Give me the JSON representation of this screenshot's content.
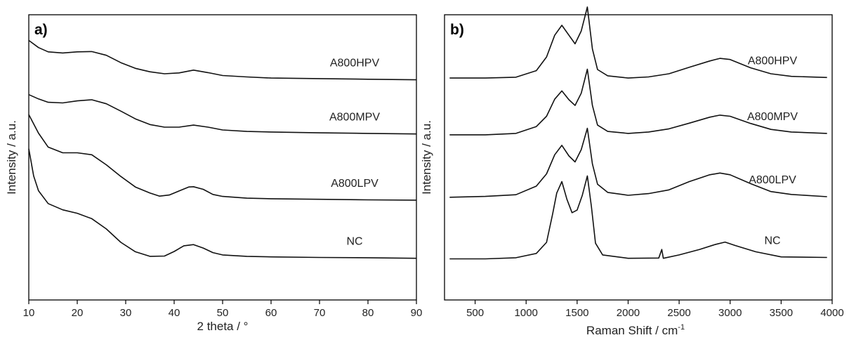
{
  "chart_data": [
    {
      "panel_label": "a)",
      "type": "line",
      "xlabel": "2 theta / °",
      "ylabel": "Intensity / a.u.",
      "xlim": [
        10,
        90
      ],
      "ylim": [
        0,
        100
      ],
      "xticks": [
        10,
        20,
        30,
        40,
        50,
        60,
        70,
        80,
        90
      ],
      "y_ticks_shown": false,
      "series": [
        {
          "name": "A800HPV",
          "points": [
            [
              10,
              91
            ],
            [
              12,
              88.5
            ],
            [
              14,
              87
            ],
            [
              17,
              86.6
            ],
            [
              20,
              87
            ],
            [
              23,
              87.1
            ],
            [
              26,
              85.8
            ],
            [
              29,
              83.2
            ],
            [
              32,
              81.2
            ],
            [
              35,
              80
            ],
            [
              38,
              79.3
            ],
            [
              41,
              79.6
            ],
            [
              44,
              80.6
            ],
            [
              47,
              79.7
            ],
            [
              50,
              78.7
            ],
            [
              55,
              78.2
            ],
            [
              60,
              77.8
            ],
            [
              70,
              77.6
            ],
            [
              80,
              77.4
            ],
            [
              90,
              77.2
            ]
          ]
        },
        {
          "name": "A800MPV",
          "points": [
            [
              10,
              72
            ],
            [
              12,
              70.5
            ],
            [
              14,
              69.3
            ],
            [
              17,
              69.1
            ],
            [
              20,
              69.8
            ],
            [
              23,
              70.2
            ],
            [
              26,
              68.8
            ],
            [
              29,
              66.2
            ],
            [
              32,
              63.5
            ],
            [
              35,
              61.5
            ],
            [
              38,
              60.6
            ],
            [
              41,
              60.6
            ],
            [
              44,
              61.3
            ],
            [
              47,
              60.6
            ],
            [
              50,
              59.6
            ],
            [
              55,
              59.1
            ],
            [
              60,
              58.9
            ],
            [
              70,
              58.6
            ],
            [
              80,
              58.4
            ],
            [
              90,
              58.2
            ]
          ]
        },
        {
          "name": "A800LPV",
          "points": [
            [
              10,
              65
            ],
            [
              12,
              58.5
            ],
            [
              14,
              53.6
            ],
            [
              17,
              51.6
            ],
            [
              20,
              51.6
            ],
            [
              23,
              50.9
            ],
            [
              26,
              47.4
            ],
            [
              29,
              43.3
            ],
            [
              32,
              39.6
            ],
            [
              35,
              37.5
            ],
            [
              37,
              36.4
            ],
            [
              39,
              36.8
            ],
            [
              41,
              38.2
            ],
            [
              43,
              39.6
            ],
            [
              44,
              39.7
            ],
            [
              46,
              38.8
            ],
            [
              48,
              37
            ],
            [
              50,
              36.3
            ],
            [
              55,
              35.7
            ],
            [
              60,
              35.5
            ],
            [
              70,
              35.3
            ],
            [
              80,
              35.1
            ],
            [
              90,
              35
            ]
          ]
        },
        {
          "name": "NC",
          "points": [
            [
              10,
              53
            ],
            [
              11,
              43.5
            ],
            [
              12,
              38.3
            ],
            [
              14,
              33.8
            ],
            [
              17,
              31.6
            ],
            [
              20,
              30.4
            ],
            [
              23,
              28.5
            ],
            [
              26,
              24.9
            ],
            [
              29,
              20.2
            ],
            [
              32,
              16.9
            ],
            [
              35,
              15.3
            ],
            [
              38,
              15.4
            ],
            [
              40,
              17
            ],
            [
              42,
              19
            ],
            [
              44,
              19.4
            ],
            [
              46,
              18.2
            ],
            [
              48,
              16.6
            ],
            [
              50,
              15.8
            ],
            [
              55,
              15.3
            ],
            [
              60,
              15.1
            ],
            [
              70,
              14.9
            ],
            [
              80,
              14.8
            ],
            [
              90,
              14.6
            ]
          ]
        }
      ]
    },
    {
      "panel_label": "b)",
      "type": "line",
      "xlabel": "Raman Shift / cm",
      "xlabel_sup": "-1",
      "ylabel": "Intensity / a.u.",
      "xlim": [
        200,
        4000
      ],
      "ylim": [
        0,
        100
      ],
      "xticks": [
        500,
        1000,
        1500,
        2000,
        2500,
        3000,
        3500,
        4000
      ],
      "y_ticks_shown": false,
      "series": [
        {
          "name": "A800HPV",
          "points": [
            [
              250,
              77.8
            ],
            [
              600,
              77.8
            ],
            [
              900,
              78.1
            ],
            [
              1100,
              80.4
            ],
            [
              1200,
              85.2
            ],
            [
              1280,
              92.8
            ],
            [
              1350,
              96.3
            ],
            [
              1420,
              92.8
            ],
            [
              1480,
              89.8
            ],
            [
              1540,
              94.3
            ],
            [
              1600,
              102.7
            ],
            [
              1650,
              88
            ],
            [
              1700,
              80.8
            ],
            [
              1800,
              78.6
            ],
            [
              2000,
              77.8
            ],
            [
              2200,
              78.2
            ],
            [
              2400,
              79.3
            ],
            [
              2600,
              81.6
            ],
            [
              2800,
              83.8
            ],
            [
              2900,
              84.7
            ],
            [
              3000,
              84.3
            ],
            [
              3200,
              81.4
            ],
            [
              3400,
              79.3
            ],
            [
              3600,
              78.4
            ],
            [
              3950,
              78
            ]
          ]
        },
        {
          "name": "A800MPV",
          "points": [
            [
              250,
              57.9
            ],
            [
              600,
              57.9
            ],
            [
              900,
              58.4
            ],
            [
              1100,
              60.8
            ],
            [
              1200,
              64.4
            ],
            [
              1280,
              70.4
            ],
            [
              1350,
              73.3
            ],
            [
              1420,
              70.2
            ],
            [
              1480,
              68.2
            ],
            [
              1540,
              72.5
            ],
            [
              1600,
              80.9
            ],
            [
              1650,
              68.2
            ],
            [
              1700,
              61.3
            ],
            [
              1800,
              59.1
            ],
            [
              2000,
              58.4
            ],
            [
              2200,
              58.9
            ],
            [
              2400,
              60
            ],
            [
              2600,
              62
            ],
            [
              2800,
              64.1
            ],
            [
              2900,
              64.8
            ],
            [
              3000,
              64.4
            ],
            [
              3200,
              61.9
            ],
            [
              3400,
              59.8
            ],
            [
              3600,
              58.9
            ],
            [
              3950,
              58.4
            ]
          ]
        },
        {
          "name": "A800LPV",
          "points": [
            [
              250,
              36
            ],
            [
              600,
              36.3
            ],
            [
              900,
              36.9
            ],
            [
              1100,
              39.9
            ],
            [
              1200,
              44.2
            ],
            [
              1280,
              50.9
            ],
            [
              1350,
              54.2
            ],
            [
              1420,
              50.5
            ],
            [
              1480,
              48.4
            ],
            [
              1540,
              52.7
            ],
            [
              1600,
              60.2
            ],
            [
              1650,
              47.7
            ],
            [
              1700,
              40.6
            ],
            [
              1800,
              37.7
            ],
            [
              2000,
              36.7
            ],
            [
              2200,
              37.3
            ],
            [
              2400,
              38.6
            ],
            [
              2600,
              41.5
            ],
            [
              2800,
              43.9
            ],
            [
              2900,
              44.5
            ],
            [
              3000,
              43.9
            ],
            [
              3200,
              40.8
            ],
            [
              3400,
              38
            ],
            [
              3600,
              37
            ],
            [
              3950,
              36.2
            ]
          ]
        },
        {
          "name": "NC",
          "points": [
            [
              250,
              14.4
            ],
            [
              600,
              14.4
            ],
            [
              900,
              14.8
            ],
            [
              1100,
              16.3
            ],
            [
              1200,
              20.2
            ],
            [
              1260,
              30.2
            ],
            [
              1300,
              37.5
            ],
            [
              1350,
              41.5
            ],
            [
              1400,
              35.3
            ],
            [
              1450,
              30.6
            ],
            [
              1500,
              31.5
            ],
            [
              1550,
              36.6
            ],
            [
              1600,
              43.5
            ],
            [
              1640,
              32.7
            ],
            [
              1680,
              19.9
            ],
            [
              1750,
              15.8
            ],
            [
              2000,
              14.6
            ],
            [
              2300,
              14.7
            ],
            [
              2330,
              17.7
            ],
            [
              2345,
              14.6
            ],
            [
              2500,
              15.8
            ],
            [
              2700,
              17.7
            ],
            [
              2850,
              19.4
            ],
            [
              2950,
              20.3
            ],
            [
              3050,
              19.1
            ],
            [
              3250,
              16.9
            ],
            [
              3500,
              15.1
            ],
            [
              3950,
              14.9
            ]
          ]
        }
      ]
    }
  ]
}
